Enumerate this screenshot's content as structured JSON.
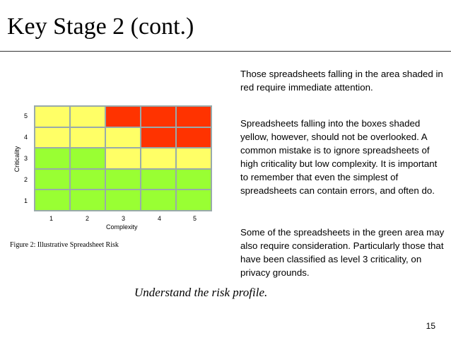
{
  "title": "Key Stage 2 (cont.)",
  "chart_data": {
    "type": "heatmap",
    "xlabel": "Complexity",
    "ylabel": "Criticality",
    "x_ticks": [
      "1",
      "2",
      "3",
      "4",
      "5"
    ],
    "y_ticks": [
      "5",
      "4",
      "3",
      "2",
      "1"
    ],
    "colors": {
      "red": "#ff3300",
      "yellow": "#ffff66",
      "green": "#99ff33"
    },
    "cells": [
      [
        "yellow",
        "yellow",
        "red",
        "red",
        "red"
      ],
      [
        "yellow",
        "yellow",
        "yellow",
        "red",
        "red"
      ],
      [
        "green",
        "green",
        "yellow",
        "yellow",
        "yellow"
      ],
      [
        "green",
        "green",
        "green",
        "green",
        "green"
      ],
      [
        "green",
        "green",
        "green",
        "green",
        "green"
      ]
    ]
  },
  "caption": "Figure 2:  Illustrative Spreadsheet Risk",
  "paragraphs": [
    "Those spreadsheets falling in the area shaded in red require immediate attention.",
    "Spreadsheets falling into the boxes shaded yellow, however, should not be overlooked.  A common mistake is to ignore spreadsheets of high criticality but low complexity.  It is important to remember that even the simplest of spreadsheets can contain errors, and often do.",
    "Some of the spreadsheets in the green area may also require consideration. Particularly those that have been classified as level 3 criticality, on privacy grounds."
  ],
  "subtitle": "Understand the risk profile.",
  "page_number": "15"
}
